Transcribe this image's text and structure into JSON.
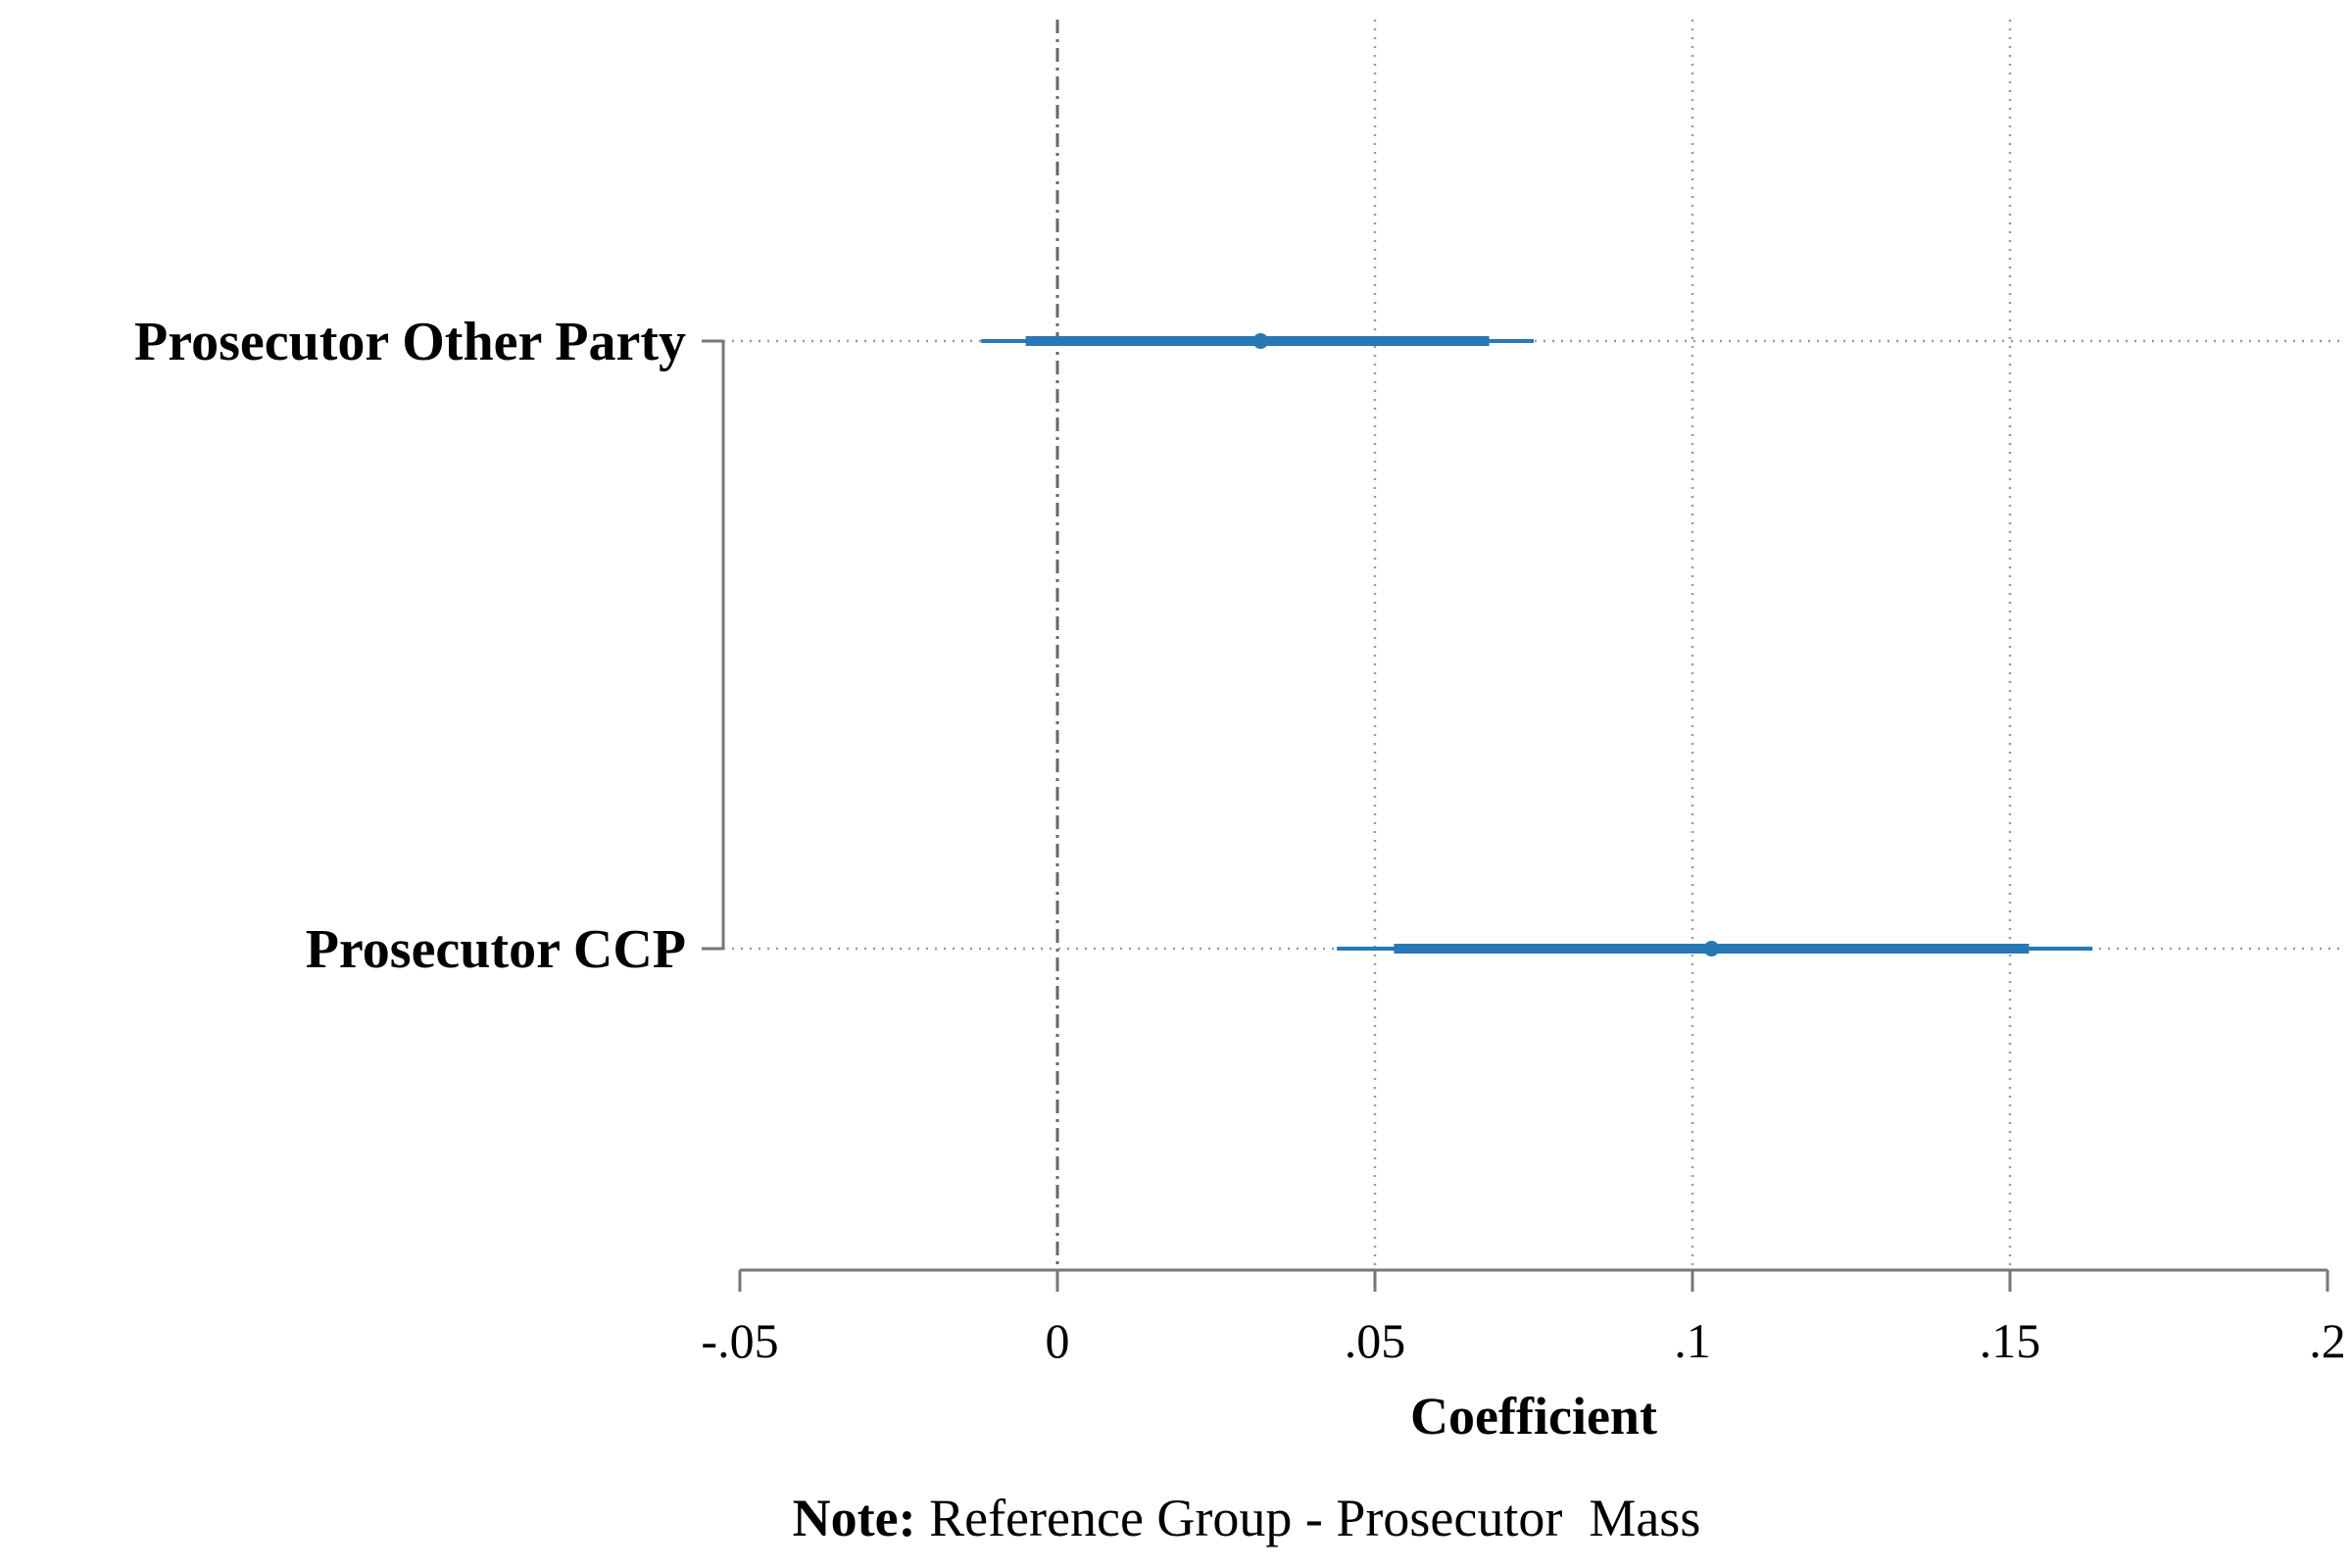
{
  "chart_data": {
    "type": "coefficient-plot",
    "xlabel": "Coefficient",
    "xlim": [
      -0.05,
      0.2
    ],
    "x_ticks": [
      {
        "value": -0.05,
        "label": "-.05"
      },
      {
        "value": 0,
        "label": "0"
      },
      {
        "value": 0.05,
        "label": ".05"
      },
      {
        "value": 0.1,
        "label": ".1"
      },
      {
        "value": 0.15,
        "label": ".15"
      },
      {
        "value": 0.2,
        "label": ".2"
      }
    ],
    "reference_line": 0,
    "grid": true,
    "color": "#2878b5",
    "points": [
      {
        "label": "Prosecutor Other Party",
        "estimate": 0.032,
        "ci_inner": [
          -0.005,
          0.068
        ],
        "ci_outer": [
          -0.012,
          0.075
        ]
      },
      {
        "label": "Prosecutor  CCP",
        "estimate": 0.103,
        "ci_inner": [
          0.053,
          0.153
        ],
        "ci_outer": [
          0.044,
          0.163
        ]
      }
    ]
  },
  "note": {
    "label": "Note:",
    "text": " Reference Group - Prosecutor  Mass"
  }
}
